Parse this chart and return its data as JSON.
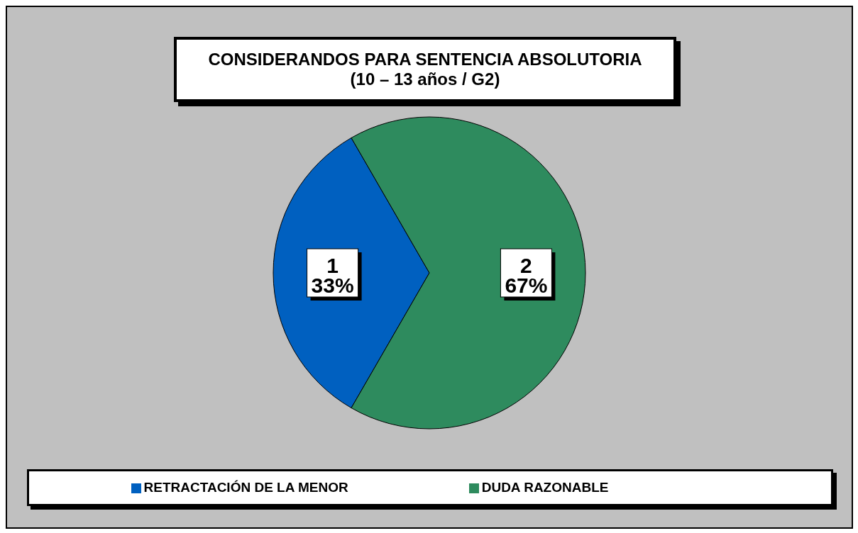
{
  "chart_data": {
    "type": "pie",
    "title": "CONSIDERANDOS PARA SENTENCIA ABSOLUTORIA",
    "subtitle": "(10 – 13 años / G2)",
    "categories": [
      "RETRACTACIÓN DE LA MENOR",
      "DUDA RAZONABLE"
    ],
    "values": [
      1,
      2
    ],
    "colors": [
      "#0060c0",
      "#2e8b5e"
    ],
    "value_labels": [
      "1\n33%",
      "2\n67%"
    ],
    "legend": "bottom"
  }
}
